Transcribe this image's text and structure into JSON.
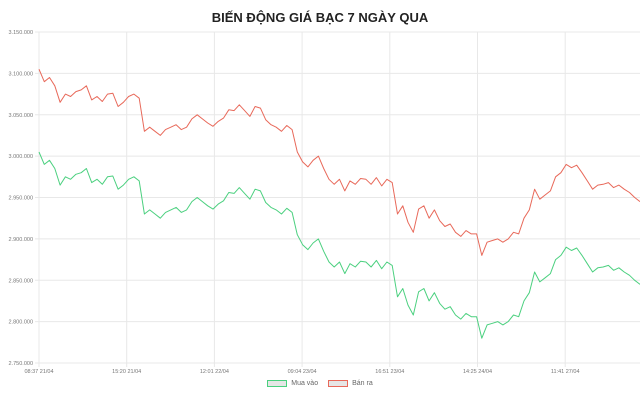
{
  "chart_data": {
    "type": "line",
    "title": "BIẾN ĐỘNG GIÁ BẠC 7 NGÀY QUA",
    "xlabel": "",
    "ylabel": "",
    "ylim": [
      2750000,
      3150000
    ],
    "y_ticks": [
      "3.150.000",
      "3.100.000",
      "3.050.000",
      "3.000.000",
      "2.950.000",
      "2.900.000",
      "2.850.000",
      "2.800.000",
      "2.750.000"
    ],
    "x_ticks": [
      "08:37 21/04",
      "15:20 21/04",
      "12:01 22/04",
      "09:04 23/04",
      "16:51 23/04",
      "14:25 24/04",
      "11:41 27/04"
    ],
    "grid": true,
    "legend_position": "bottom",
    "series": [
      {
        "name": "Mua vào",
        "color": "#4bd07f",
        "values": [
          3005000,
          2990000,
          2995000,
          2985000,
          2965000,
          2975000,
          2972000,
          2978000,
          2980000,
          2985000,
          2968000,
          2972000,
          2966000,
          2975000,
          2976000,
          2960000,
          2965000,
          2972000,
          2975000,
          2970000,
          2930000,
          2935000,
          2930000,
          2925000,
          2932000,
          2935000,
          2938000,
          2932000,
          2935000,
          2945000,
          2950000,
          2945000,
          2940000,
          2936000,
          2942000,
          2946000,
          2956000,
          2955000,
          2962000,
          2955000,
          2948000,
          2960000,
          2958000,
          2944000,
          2938000,
          2935000,
          2930000,
          2937000,
          2932000,
          2905000,
          2893000,
          2887000,
          2895000,
          2900000,
          2885000,
          2872000,
          2866000,
          2872000,
          2858000,
          2870000,
          2866000,
          2873000,
          2872000,
          2866000,
          2874000,
          2864000,
          2872000,
          2868000,
          2830000,
          2840000,
          2820000,
          2808000,
          2836000,
          2840000,
          2825000,
          2835000,
          2822000,
          2815000,
          2818000,
          2808000,
          2803000,
          2810000,
          2806000,
          2806000,
          2780000,
          2796000,
          2798000,
          2800000,
          2796000,
          2800000,
          2808000,
          2806000,
          2825000,
          2835000,
          2860000,
          2848000,
          2853000,
          2858000,
          2875000,
          2880000,
          2890000,
          2886000,
          2889000,
          2880000,
          2870000,
          2860000,
          2865000,
          2866000,
          2868000,
          2862000,
          2865000,
          2860000,
          2856000,
          2850000,
          2845000
        ]
      },
      {
        "name": "Bán ra",
        "color": "#e8695a",
        "values": [
          3105000,
          3090000,
          3095000,
          3085000,
          3065000,
          3075000,
          3072000,
          3078000,
          3080000,
          3085000,
          3068000,
          3072000,
          3066000,
          3075000,
          3076000,
          3060000,
          3065000,
          3072000,
          3075000,
          3070000,
          3030000,
          3035000,
          3030000,
          3025000,
          3032000,
          3035000,
          3038000,
          3032000,
          3035000,
          3045000,
          3050000,
          3045000,
          3040000,
          3036000,
          3042000,
          3046000,
          3056000,
          3055000,
          3062000,
          3055000,
          3048000,
          3060000,
          3058000,
          3044000,
          3038000,
          3035000,
          3030000,
          3037000,
          3032000,
          3005000,
          2993000,
          2987000,
          2995000,
          3000000,
          2985000,
          2972000,
          2966000,
          2972000,
          2958000,
          2970000,
          2966000,
          2973000,
          2972000,
          2966000,
          2974000,
          2964000,
          2972000,
          2968000,
          2930000,
          2940000,
          2920000,
          2908000,
          2936000,
          2940000,
          2925000,
          2935000,
          2922000,
          2915000,
          2918000,
          2908000,
          2903000,
          2910000,
          2906000,
          2906000,
          2880000,
          2896000,
          2898000,
          2900000,
          2896000,
          2900000,
          2908000,
          2906000,
          2925000,
          2935000,
          2960000,
          2948000,
          2953000,
          2958000,
          2975000,
          2980000,
          2990000,
          2986000,
          2989000,
          2980000,
          2970000,
          2960000,
          2965000,
          2966000,
          2968000,
          2962000,
          2965000,
          2960000,
          2956000,
          2950000,
          2945000
        ]
      }
    ]
  },
  "legend": {
    "buy_label": "Mua vào",
    "sell_label": "Bán ra"
  }
}
